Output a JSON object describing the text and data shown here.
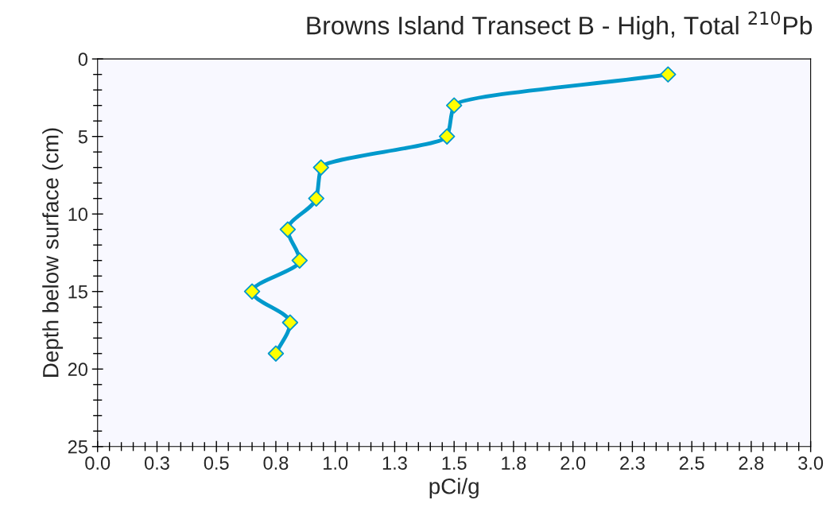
{
  "chart_data": {
    "type": "line",
    "title": "Browns Island Transect B - High, Total $^{210}$Pb",
    "xlabel": "pCi/g",
    "ylabel": "Depth below surface (cm)",
    "series": [
      {
        "color": "#0099cc",
        "x": [
          2.4,
          1.5,
          1.47,
          0.94,
          0.92,
          0.8,
          0.85,
          0.65,
          0.81,
          0.75
        ],
        "values": [
          1,
          3,
          5,
          7,
          9,
          11,
          13,
          15,
          17,
          19
        ]
      }
    ],
    "marker": "diamond",
    "xlim": [
      0,
      3
    ],
    "xticks": [
      {
        "value": 0,
        "label": "0.0"
      },
      {
        "value": 0.25,
        "label": "0.3"
      },
      0.5,
      {
        "value": 0.75,
        "label": "0.8"
      },
      {
        "value": 1,
        "label": "1.0"
      },
      {
        "value": 1.25,
        "label": "1.3"
      },
      1.5,
      {
        "value": 1.75,
        "label": "1.8"
      },
      {
        "value": 2,
        "label": "2.0"
      },
      {
        "value": 2.25,
        "label": "2.3"
      },
      2.5,
      {
        "value": 2.75,
        "label": "2.8"
      },
      {
        "value": 3,
        "label": "3.0"
      }
    ],
    "ylim": [
      25,
      0
    ],
    "yticks": [
      0,
      5,
      10,
      15,
      20,
      25
    ],
    "grid": false,
    "legend": false
  }
}
